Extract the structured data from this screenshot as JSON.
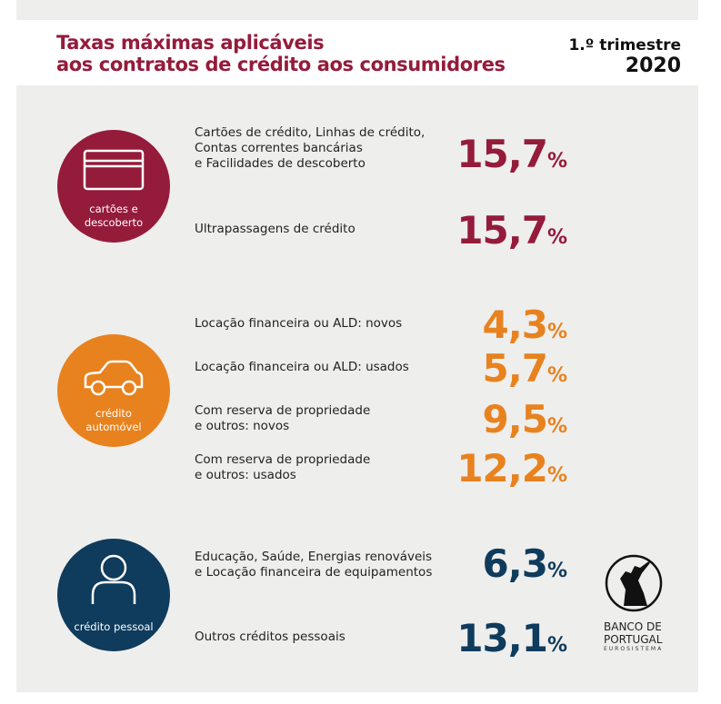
{
  "header": {
    "title_line1": "Taxas máximas aplicáveis",
    "title_line2": "aos contratos de crédito aos consumidores",
    "period": "1.º trimestre",
    "year": "2020"
  },
  "colors": {
    "red": "#951b3b",
    "orange": "#e8821e",
    "navy": "#0f3b5c"
  },
  "sections": [
    {
      "label": "cartões e descoberto",
      "icon": "credit-card-icon",
      "rows": [
        {
          "text": "Cartões de crédito, Linhas de crédito,\nContas correntes bancárias\ne Facilidades de descoberto",
          "value": "15,7",
          "unit": "%"
        },
        {
          "text": "Ultrapassagens de crédito",
          "value": "15,7",
          "unit": "%"
        }
      ]
    },
    {
      "label": "crédito automóvel",
      "icon": "car-icon",
      "rows": [
        {
          "text": "Locação financeira ou ALD: novos",
          "value": "4,3",
          "unit": "%"
        },
        {
          "text": "Locação financeira ou ALD: usados",
          "value": "5,7",
          "unit": "%"
        },
        {
          "text": "Com reserva de propriedade\ne outros: novos",
          "value": "9,5",
          "unit": "%"
        },
        {
          "text": "Com reserva de propriedade\ne outros: usados",
          "value": "12,2",
          "unit": "%"
        }
      ]
    },
    {
      "label": "crédito pessoal",
      "icon": "person-icon",
      "rows": [
        {
          "text": "Educação, Saúde, Energias renováveis\ne Locação financeira de equipamentos",
          "value": "6,3",
          "unit": "%"
        },
        {
          "text": "Outros créditos pessoais",
          "value": "13,1",
          "unit": "%"
        }
      ]
    }
  ],
  "logo": {
    "line1": "BANCO DE",
    "line2": "PORTUGAL",
    "line3": "EUROSISTEMA"
  }
}
